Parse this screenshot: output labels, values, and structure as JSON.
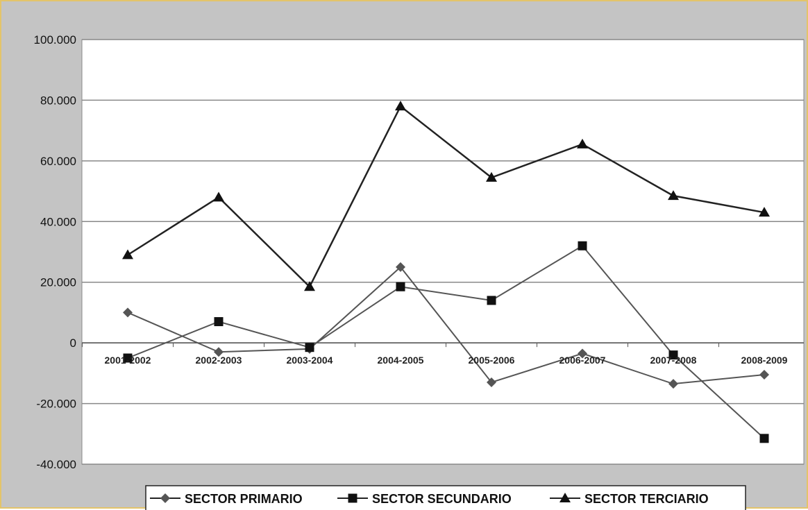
{
  "chart_data": {
    "type": "line",
    "title": "",
    "xlabel": "",
    "ylabel": "",
    "categories": [
      "2001-2002",
      "2002-2003",
      "2003-2004",
      "2004-2005",
      "2005-2006",
      "2006-2007",
      "2007-2008",
      "2008-2009"
    ],
    "y_ticks": [
      100000,
      80000,
      60000,
      40000,
      20000,
      0,
      -20000,
      -40000
    ],
    "y_tick_labels": [
      "100.000",
      "80.000",
      "60.000",
      "40.000",
      "20.000",
      "0",
      "-20.000",
      "-40.000"
    ],
    "ylim": [
      -40000,
      100000
    ],
    "grid": true,
    "legend_position": "bottom",
    "series": [
      {
        "name": "SECTOR PRIMARIO",
        "marker": "diamond",
        "color": "#555555",
        "values": [
          10000,
          -3000,
          -2000,
          25000,
          -13000,
          -3500,
          -13500,
          -10500
        ]
      },
      {
        "name": "SECTOR SECUNDARIO",
        "marker": "square",
        "color": "#555555",
        "values": [
          -5000,
          7000,
          -1500,
          18500,
          14000,
          32000,
          -4000,
          -31500
        ]
      },
      {
        "name": "SECTOR TERCIARIO",
        "marker": "triangle",
        "color": "#222222",
        "values": [
          29000,
          48000,
          18500,
          78000,
          54500,
          65500,
          48500,
          43000
        ]
      }
    ]
  }
}
